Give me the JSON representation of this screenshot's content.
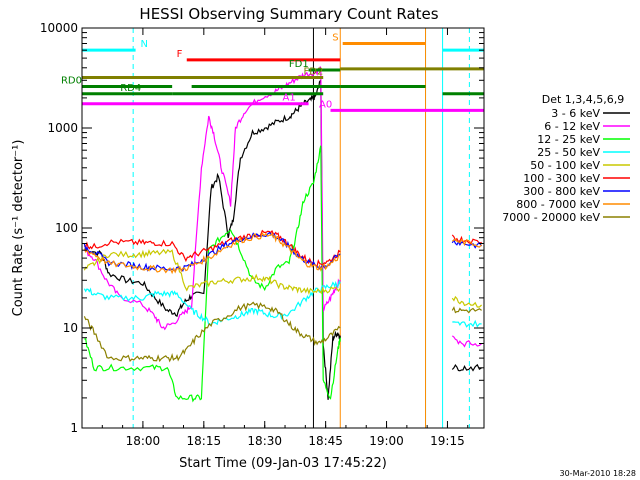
{
  "chart_data": {
    "type": "line",
    "title": "HESSI Observing Summary Count Rates",
    "xlabel": "Start Time (09-Jan-03 17:45:22)",
    "ylabel": "Count Rate (s⁻¹ detector⁻¹)",
    "y_scale": "log",
    "ylim": [
      1,
      10000
    ],
    "xlim_minutes": [
      17.75,
      19.4
    ],
    "x_ticks": [
      {
        "label": "18:00",
        "t": 18.0
      },
      {
        "label": "18:15",
        "t": 18.25
      },
      {
        "label": "18:30",
        "t": 18.5
      },
      {
        "label": "18:45",
        "t": 18.75
      },
      {
        "label": "19:00",
        "t": 19.0
      },
      {
        "label": "19:15",
        "t": 19.25
      }
    ],
    "y_ticks": [
      {
        "label": "1",
        "v": 1
      },
      {
        "label": "10",
        "v": 10
      },
      {
        "label": "100",
        "v": 100
      },
      {
        "label": "1000",
        "v": 1000
      },
      {
        "label": "10000",
        "v": 10000
      }
    ],
    "legend_title": "Det 1,3,4,5,6,9",
    "legend_position": "right",
    "grid": false,
    "series": [
      {
        "name": "3 - 6 keV",
        "color": "#000000",
        "points": [
          [
            17.76,
            62
          ],
          [
            17.83,
            55
          ],
          [
            17.86,
            35
          ],
          [
            17.93,
            30
          ],
          [
            18.0,
            28
          ],
          [
            18.05,
            20
          ],
          [
            18.1,
            15
          ],
          [
            18.14,
            14
          ],
          [
            18.17,
            18
          ],
          [
            18.2,
            21
          ],
          [
            18.25,
            22
          ],
          [
            18.28,
            250
          ],
          [
            18.31,
            330
          ],
          [
            18.35,
            85
          ],
          [
            18.37,
            120
          ],
          [
            18.4,
            500
          ],
          [
            18.45,
            900
          ],
          [
            18.5,
            1000
          ],
          [
            18.55,
            1150
          ],
          [
            18.6,
            1300
          ],
          [
            18.63,
            1500
          ],
          [
            18.66,
            1750
          ],
          [
            18.69,
            1900
          ],
          [
            18.71,
            2100
          ],
          [
            18.73,
            3000
          ],
          [
            18.74,
            7
          ],
          [
            18.76,
            2
          ],
          [
            18.78,
            8
          ],
          [
            18.8,
            9
          ],
          [
            18.81,
            8
          ]
        ]
      },
      {
        "name": "6 - 12 keV",
        "color": "#ff00ff",
        "points": [
          [
            17.76,
            60
          ],
          [
            17.8,
            50
          ],
          [
            17.85,
            30
          ],
          [
            17.9,
            21
          ],
          [
            18.0,
            17
          ],
          [
            18.05,
            13
          ],
          [
            18.08,
            10
          ],
          [
            18.12,
            11
          ],
          [
            18.17,
            14
          ],
          [
            18.2,
            17
          ],
          [
            18.24,
            400
          ],
          [
            18.27,
            1300
          ],
          [
            18.29,
            900
          ],
          [
            18.32,
            420
          ],
          [
            18.36,
            175
          ],
          [
            18.38,
            1000
          ],
          [
            18.42,
            1500
          ],
          [
            18.48,
            2000
          ],
          [
            18.54,
            2300
          ],
          [
            18.58,
            2600
          ],
          [
            18.62,
            3000
          ],
          [
            18.66,
            3400
          ],
          [
            18.71,
            3600
          ],
          [
            18.73,
            4000
          ],
          [
            18.74,
            15
          ],
          [
            18.77,
            20
          ],
          [
            18.79,
            25
          ],
          [
            18.81,
            30
          ]
        ]
      },
      {
        "name": "12 - 25 keV",
        "color": "#00ff00",
        "points": [
          [
            17.76,
            8
          ],
          [
            17.8,
            4
          ],
          [
            17.86,
            4
          ],
          [
            17.94,
            4
          ],
          [
            18.04,
            4
          ],
          [
            18.1,
            4
          ],
          [
            18.14,
            2
          ],
          [
            18.2,
            2
          ],
          [
            18.24,
            2
          ],
          [
            18.27,
            60
          ],
          [
            18.32,
            80
          ],
          [
            18.36,
            100
          ],
          [
            18.4,
            60
          ],
          [
            18.45,
            30
          ],
          [
            18.5,
            25
          ],
          [
            18.55,
            40
          ],
          [
            18.6,
            45
          ],
          [
            18.63,
            85
          ],
          [
            18.66,
            190
          ],
          [
            18.7,
            280
          ],
          [
            18.73,
            650
          ],
          [
            18.74,
            3
          ],
          [
            18.77,
            2
          ],
          [
            18.8,
            6
          ],
          [
            18.81,
            8
          ]
        ]
      },
      {
        "name": "25 - 50 keV",
        "color": "#00ffff",
        "points": [
          [
            17.76,
            25
          ],
          [
            17.8,
            22
          ],
          [
            17.86,
            20
          ],
          [
            17.94,
            20
          ],
          [
            18.0,
            20
          ],
          [
            18.05,
            22
          ],
          [
            18.1,
            22
          ],
          [
            18.14,
            22
          ],
          [
            18.2,
            15
          ],
          [
            18.24,
            13
          ],
          [
            18.28,
            11
          ],
          [
            18.32,
            12
          ],
          [
            18.38,
            13
          ],
          [
            18.42,
            14
          ],
          [
            18.46,
            15
          ],
          [
            18.5,
            14
          ],
          [
            18.55,
            13
          ],
          [
            18.6,
            14
          ],
          [
            18.66,
            19
          ],
          [
            18.7,
            23
          ],
          [
            18.74,
            25
          ],
          [
            18.78,
            27
          ],
          [
            18.81,
            28
          ]
        ]
      },
      {
        "name": "50 - 100 keV",
        "color": "#c8c800",
        "points": [
          [
            17.76,
            38
          ],
          [
            17.8,
            44
          ],
          [
            17.86,
            55
          ],
          [
            17.94,
            54
          ],
          [
            18.0,
            55
          ],
          [
            18.05,
            56
          ],
          [
            18.12,
            57
          ],
          [
            18.18,
            25
          ],
          [
            18.24,
            27
          ],
          [
            18.3,
            29
          ],
          [
            18.36,
            30
          ],
          [
            18.42,
            31
          ],
          [
            18.48,
            32
          ],
          [
            18.52,
            30
          ],
          [
            18.57,
            26
          ],
          [
            18.61,
            25
          ],
          [
            18.65,
            24
          ],
          [
            18.7,
            23
          ],
          [
            18.75,
            24
          ],
          [
            18.81,
            25
          ]
        ]
      },
      {
        "name": "100 - 300 keV",
        "color": "#ff0000",
        "points": [
          [
            17.76,
            68
          ],
          [
            17.8,
            65
          ],
          [
            17.86,
            72
          ],
          [
            17.94,
            72
          ],
          [
            18.0,
            71
          ],
          [
            18.05,
            71
          ],
          [
            18.12,
            70
          ],
          [
            18.17,
            50
          ],
          [
            18.22,
            55
          ],
          [
            18.28,
            62
          ],
          [
            18.34,
            72
          ],
          [
            18.4,
            80
          ],
          [
            18.46,
            86
          ],
          [
            18.52,
            90
          ],
          [
            18.56,
            82
          ],
          [
            18.6,
            68
          ],
          [
            18.64,
            55
          ],
          [
            18.68,
            47
          ],
          [
            18.72,
            44
          ],
          [
            18.76,
            46
          ],
          [
            18.81,
            58
          ]
        ]
      },
      {
        "name": "300 - 800 keV",
        "color": "#0000ff",
        "points": [
          [
            17.76,
            65
          ],
          [
            17.8,
            58
          ],
          [
            17.86,
            45
          ],
          [
            17.94,
            43
          ],
          [
            18.0,
            41
          ],
          [
            18.05,
            40
          ],
          [
            18.12,
            39
          ],
          [
            18.17,
            40
          ],
          [
            18.22,
            45
          ],
          [
            18.28,
            55
          ],
          [
            18.34,
            68
          ],
          [
            18.4,
            78
          ],
          [
            18.46,
            84
          ],
          [
            18.52,
            88
          ],
          [
            18.56,
            78
          ],
          [
            18.6,
            65
          ],
          [
            18.64,
            52
          ],
          [
            18.68,
            45
          ],
          [
            18.72,
            41
          ],
          [
            18.76,
            43
          ],
          [
            18.81,
            55
          ]
        ]
      },
      {
        "name": "800 - 7000 keV",
        "color": "#ff8c00",
        "points": [
          [
            17.76,
            60
          ],
          [
            17.8,
            55
          ],
          [
            17.86,
            44
          ],
          [
            17.94,
            42
          ],
          [
            18.0,
            40
          ],
          [
            18.05,
            39
          ],
          [
            18.12,
            38
          ],
          [
            18.17,
            39
          ],
          [
            18.22,
            44
          ],
          [
            18.28,
            52
          ],
          [
            18.34,
            65
          ],
          [
            18.4,
            75
          ],
          [
            18.46,
            82
          ],
          [
            18.52,
            85
          ],
          [
            18.56,
            75
          ],
          [
            18.6,
            62
          ],
          [
            18.64,
            50
          ],
          [
            18.68,
            43
          ],
          [
            18.72,
            40
          ],
          [
            18.76,
            42
          ],
          [
            18.81,
            53
          ]
        ]
      },
      {
        "name": "7000 - 20000 keV",
        "color": "#8b8000",
        "points": [
          [
            17.76,
            13
          ],
          [
            17.8,
            9
          ],
          [
            17.86,
            5
          ],
          [
            17.94,
            5
          ],
          [
            18.0,
            5
          ],
          [
            18.05,
            5
          ],
          [
            18.1,
            5
          ],
          [
            18.14,
            5
          ],
          [
            18.18,
            6
          ],
          [
            18.22,
            8
          ],
          [
            18.28,
            11
          ],
          [
            18.34,
            13
          ],
          [
            18.4,
            16
          ],
          [
            18.46,
            17
          ],
          [
            18.52,
            16
          ],
          [
            18.56,
            14
          ],
          [
            18.6,
            11
          ],
          [
            18.64,
            9
          ],
          [
            18.68,
            8
          ],
          [
            18.72,
            7
          ],
          [
            18.76,
            8
          ],
          [
            18.81,
            10
          ]
        ]
      }
    ],
    "post_gap_series": [
      {
        "color": "#ff0000",
        "points": [
          [
            19.27,
            80
          ],
          [
            19.32,
            76
          ],
          [
            19.39,
            72
          ]
        ]
      },
      {
        "color": "#0000ff",
        "points": [
          [
            19.27,
            74
          ],
          [
            19.32,
            70
          ],
          [
            19.39,
            66
          ]
        ]
      },
      {
        "color": "#ff8c00",
        "points": [
          [
            19.27,
            76
          ],
          [
            19.32,
            72
          ],
          [
            19.39,
            68
          ]
        ]
      },
      {
        "color": "#c8c800",
        "points": [
          [
            19.27,
            20
          ],
          [
            19.32,
            18
          ],
          [
            19.39,
            17
          ]
        ]
      },
      {
        "color": "#8b8000",
        "points": [
          [
            19.27,
            15
          ],
          [
            19.32,
            15
          ],
          [
            19.39,
            15
          ]
        ]
      },
      {
        "color": "#00ffff",
        "points": [
          [
            19.27,
            11
          ],
          [
            19.32,
            11
          ],
          [
            19.39,
            11
          ]
        ]
      },
      {
        "color": "#ff00ff",
        "points": [
          [
            19.27,
            8
          ],
          [
            19.32,
            7
          ],
          [
            19.39,
            7
          ]
        ]
      },
      {
        "color": "#000000",
        "points": [
          [
            19.27,
            4
          ],
          [
            19.32,
            4
          ],
          [
            19.39,
            4
          ]
        ]
      }
    ],
    "flag_bars": [
      {
        "label": "N",
        "color": "#00ffff",
        "y": 6000,
        "x0": 17.75,
        "x1": 17.97,
        "label_at": 17.99,
        "align": "start"
      },
      {
        "label": "N",
        "color": "#00ffff",
        "y": 6000,
        "x0": 19.23,
        "x1": 19.4,
        "label_at": null,
        "align": "start"
      },
      {
        "label": "S",
        "color": "#ff8c00",
        "y": 7000,
        "x0": 18.82,
        "x1": 19.16,
        "label_at": 18.79,
        "align": "middle"
      },
      {
        "label": "F",
        "color": "#ff0000",
        "y": 4800,
        "x0": 18.18,
        "x1": 18.81,
        "label_at": 18.15,
        "align": "middle"
      },
      {
        "label": "FD1",
        "color": "#008000",
        "y": 3800,
        "x0": 18.68,
        "x1": 18.81,
        "label_at": 18.64,
        "align": "middle"
      },
      {
        "label": "FD2",
        "color": "#808000",
        "y": 3200,
        "x0": 17.75,
        "x1": 18.74,
        "label_at": 18.7,
        "align": "middle"
      },
      {
        "label": "",
        "color": "#808000",
        "y": 3900,
        "x0": 18.81,
        "x1": 19.4,
        "label_at": null,
        "align": "middle"
      },
      {
        "label": "RD0",
        "color": "#008000",
        "y": 2600,
        "x0": 17.75,
        "x1": 18.12,
        "label_at": 17.75,
        "align": "end"
      },
      {
        "label": "",
        "color": "#008000",
        "y": 2600,
        "x0": 18.2,
        "x1": 18.81,
        "label_at": null,
        "align": "middle"
      },
      {
        "label": "",
        "color": "#008000",
        "y": 2600,
        "x0": 18.81,
        "x1": 19.16,
        "label_at": null,
        "align": "middle"
      },
      {
        "label": "",
        "color": "#008000",
        "y": 2200,
        "x0": 19.23,
        "x1": 19.4,
        "label_at": null,
        "align": "middle"
      },
      {
        "label": "RD4",
        "color": "#008000",
        "y": 2200,
        "x0": 17.75,
        "x1": 18.12,
        "label_at": 17.95,
        "align": "middle"
      },
      {
        "label": "",
        "color": "#008000",
        "y": 2200,
        "x0": 18.12,
        "x1": 18.74,
        "label_at": null,
        "align": "middle"
      },
      {
        "label": "A1",
        "color": "#ff00ff",
        "y": 1750,
        "x0": 17.75,
        "x1": 18.68,
        "label_at": 18.6,
        "align": "middle"
      },
      {
        "label": "A0",
        "color": "#ff00ff",
        "y": 1500,
        "x0": 18.77,
        "x1": 19.4,
        "label_at": 18.75,
        "align": "middle"
      }
    ],
    "vertical_lines": [
      {
        "t": 17.96,
        "color": "#00ffff",
        "dashed": true
      },
      {
        "t": 18.81,
        "color": "#ff8c00",
        "dashed": false
      },
      {
        "t": 18.7,
        "color": "#000000",
        "dashed": false
      },
      {
        "t": 19.16,
        "color": "#00ffff",
        "dashed": false
      },
      {
        "t": 19.16,
        "color": "#ff8c00",
        "dashed": false
      },
      {
        "t": 19.23,
        "color": "#00ffff",
        "dashed": false
      },
      {
        "t": 19.34,
        "color": "#00ffff",
        "dashed": true
      }
    ]
  },
  "timestamp": "30-Mar-2010 18:28"
}
